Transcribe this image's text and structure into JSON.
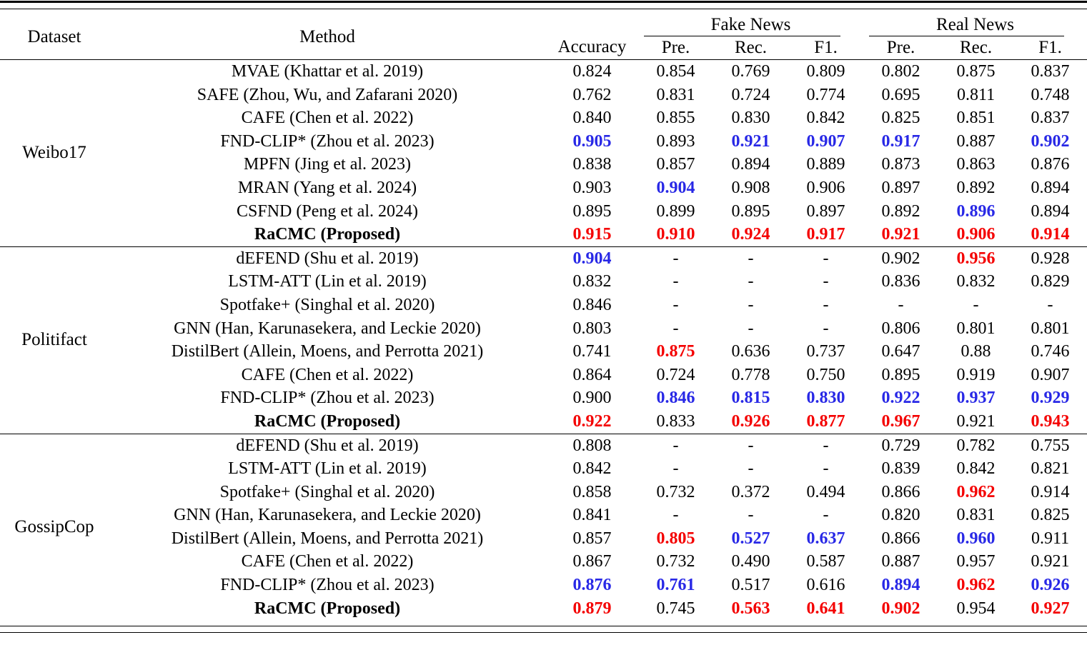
{
  "table": {
    "header": {
      "dataset": "Dataset",
      "method": "Method",
      "accuracy": "Accuracy",
      "groups": [
        {
          "label": "Fake News",
          "cols": [
            "Pre.",
            "Rec.",
            "F1."
          ]
        },
        {
          "label": "Real News",
          "cols": [
            "Pre.",
            "Rec.",
            "F1."
          ]
        }
      ]
    },
    "colors": {
      "best_hex": "#f40000",
      "second_hex": "#2828e6",
      "text_hex": "#000000"
    },
    "groups": [
      {
        "dataset": "Weibo17",
        "rows": [
          {
            "method": "MVAE (Khattar et al. 2019)",
            "bold": false,
            "values": [
              "0.824",
              "0.854",
              "0.769",
              "0.809",
              "0.802",
              "0.875",
              "0.837"
            ],
            "hl": [
              "",
              "",
              "",
              "",
              "",
              "",
              ""
            ]
          },
          {
            "method": "SAFE (Zhou, Wu, and Zafarani 2020)",
            "bold": false,
            "values": [
              "0.762",
              "0.831",
              "0.724",
              "0.774",
              "0.695",
              "0.811",
              "0.748"
            ],
            "hl": [
              "",
              "",
              "",
              "",
              "",
              "",
              ""
            ]
          },
          {
            "method": "CAFE (Chen et al. 2022)",
            "bold": false,
            "values": [
              "0.840",
              "0.855",
              "0.830",
              "0.842",
              "0.825",
              "0.851",
              "0.837"
            ],
            "hl": [
              "",
              "",
              "",
              "",
              "",
              "",
              ""
            ]
          },
          {
            "method": "FND-CLIP* (Zhou et al. 2023)",
            "bold": false,
            "values": [
              "0.905",
              "0.893",
              "0.921",
              "0.907",
              "0.917",
              "0.887",
              "0.902"
            ],
            "hl": [
              "b",
              "",
              "b",
              "b",
              "b",
              "",
              "b"
            ]
          },
          {
            "method": "MPFN (Jing et al. 2023)",
            "bold": false,
            "values": [
              "0.838",
              "0.857",
              "0.894",
              "0.889",
              "0.873",
              "0.863",
              "0.876"
            ],
            "hl": [
              "",
              "",
              "",
              "",
              "",
              "",
              ""
            ]
          },
          {
            "method": "MRAN (Yang et al. 2024)",
            "bold": false,
            "values": [
              "0.903",
              "0.904",
              "0.908",
              "0.906",
              "0.897",
              "0.892",
              "0.894"
            ],
            "hl": [
              "",
              "b",
              "",
              "",
              "",
              "",
              ""
            ]
          },
          {
            "method": "CSFND (Peng et al. 2024)",
            "bold": false,
            "values": [
              "0.895",
              "0.899",
              "0.895",
              "0.897",
              "0.892",
              "0.896",
              "0.894"
            ],
            "hl": [
              "",
              "",
              "",
              "",
              "",
              "b",
              ""
            ]
          },
          {
            "method": "RaCMC (Proposed)",
            "bold": true,
            "values": [
              "0.915",
              "0.910",
              "0.924",
              "0.917",
              "0.921",
              "0.906",
              "0.914"
            ],
            "hl": [
              "r",
              "r",
              "r",
              "r",
              "r",
              "r",
              "r"
            ]
          }
        ]
      },
      {
        "dataset": "Politifact",
        "rows": [
          {
            "method": "dEFEND (Shu et al. 2019)",
            "bold": false,
            "values": [
              "0.904",
              "-",
              "-",
              "-",
              "0.902",
              "0.956",
              "0.928"
            ],
            "hl": [
              "b",
              "",
              "",
              "",
              "",
              "r",
              ""
            ]
          },
          {
            "method": "LSTM-ATT (Lin et al. 2019)",
            "bold": false,
            "values": [
              "0.832",
              "-",
              "-",
              "-",
              "0.836",
              "0.832",
              "0.829"
            ],
            "hl": [
              "",
              "",
              "",
              "",
              "",
              "",
              ""
            ]
          },
          {
            "method": "Spotfake+ (Singhal et al. 2020)",
            "bold": false,
            "values": [
              "0.846",
              "-",
              "-",
              "-",
              "-",
              "-",
              "-"
            ],
            "hl": [
              "",
              "",
              "",
              "",
              "",
              "",
              ""
            ]
          },
          {
            "method": "GNN (Han, Karunasekera, and Leckie 2020)",
            "bold": false,
            "values": [
              "0.803",
              "-",
              "-",
              "-",
              "0.806",
              "0.801",
              "0.801"
            ],
            "hl": [
              "",
              "",
              "",
              "",
              "",
              "",
              ""
            ]
          },
          {
            "method": "DistilBert (Allein, Moens, and Perrotta 2021)",
            "bold": false,
            "values": [
              "0.741",
              "0.875",
              "0.636",
              "0.737",
              "0.647",
              "0.88",
              "0.746"
            ],
            "hl": [
              "",
              "r",
              "",
              "",
              "",
              "",
              ""
            ]
          },
          {
            "method": "CAFE (Chen et al. 2022)",
            "bold": false,
            "values": [
              "0.864",
              "0.724",
              "0.778",
              "0.750",
              "0.895",
              "0.919",
              "0.907"
            ],
            "hl": [
              "",
              "",
              "",
              "",
              "",
              "",
              ""
            ]
          },
          {
            "method": "FND-CLIP* (Zhou et al. 2023)",
            "bold": false,
            "values": [
              "0.900",
              "0.846",
              "0.815",
              "0.830",
              "0.922",
              "0.937",
              "0.929"
            ],
            "hl": [
              "",
              "b",
              "b",
              "b",
              "b",
              "b",
              "b"
            ]
          },
          {
            "method": "RaCMC (Proposed)",
            "bold": true,
            "values": [
              "0.922",
              "0.833",
              "0.926",
              "0.877",
              "0.967",
              "0.921",
              "0.943"
            ],
            "hl": [
              "r",
              "",
              "r",
              "r",
              "r",
              "",
              "r"
            ]
          }
        ]
      },
      {
        "dataset": "GossipCop",
        "rows": [
          {
            "method": "dEFEND (Shu et al. 2019)",
            "bold": false,
            "values": [
              "0.808",
              "-",
              "-",
              "-",
              "0.729",
              "0.782",
              "0.755"
            ],
            "hl": [
              "",
              "",
              "",
              "",
              "",
              "",
              ""
            ]
          },
          {
            "method": "LSTM-ATT (Lin et al. 2019)",
            "bold": false,
            "values": [
              "0.842",
              "-",
              "-",
              "-",
              "0.839",
              "0.842",
              "0.821"
            ],
            "hl": [
              "",
              "",
              "",
              "",
              "",
              "",
              ""
            ]
          },
          {
            "method": "Spotfake+ (Singhal et al. 2020)",
            "bold": false,
            "values": [
              "0.858",
              "0.732",
              "0.372",
              "0.494",
              "0.866",
              "0.962",
              "0.914"
            ],
            "hl": [
              "",
              "",
              "",
              "",
              "",
              "r",
              ""
            ]
          },
          {
            "method": "GNN (Han, Karunasekera, and Leckie 2020)",
            "bold": false,
            "values": [
              "0.841",
              "-",
              "-",
              "-",
              "0.820",
              "0.831",
              "0.825"
            ],
            "hl": [
              "",
              "",
              "",
              "",
              "",
              "",
              ""
            ]
          },
          {
            "method": "DistilBert (Allein, Moens, and Perrotta 2021)",
            "bold": false,
            "values": [
              "0.857",
              "0.805",
              "0.527",
              "0.637",
              "0.866",
              "0.960",
              "0.911"
            ],
            "hl": [
              "",
              "r",
              "b",
              "b",
              "",
              "b",
              ""
            ]
          },
          {
            "method": "CAFE (Chen et al. 2022)",
            "bold": false,
            "values": [
              "0.867",
              "0.732",
              "0.490",
              "0.587",
              "0.887",
              "0.957",
              "0.921"
            ],
            "hl": [
              "",
              "",
              "",
              "",
              "",
              "",
              ""
            ]
          },
          {
            "method": "FND-CLIP* (Zhou et al. 2023)",
            "bold": false,
            "values": [
              "0.876",
              "0.761",
              "0.517",
              "0.616",
              "0.894",
              "0.962",
              "0.926"
            ],
            "hl": [
              "b",
              "b",
              "",
              "",
              "b",
              "r",
              "b"
            ]
          },
          {
            "method": "RaCMC (Proposed)",
            "bold": true,
            "values": [
              "0.879",
              "0.745",
              "0.563",
              "0.641",
              "0.902",
              "0.954",
              "0.927"
            ],
            "hl": [
              "r",
              "",
              "r",
              "r",
              "r",
              "",
              "r"
            ]
          }
        ]
      }
    ]
  }
}
